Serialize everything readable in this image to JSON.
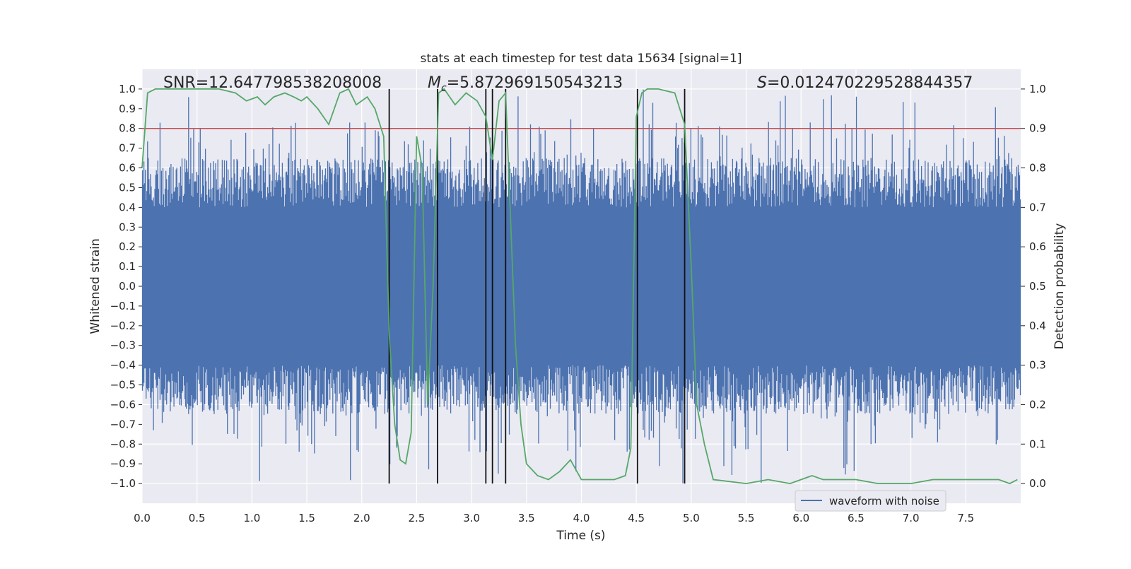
{
  "chart_data": {
    "type": "line",
    "title": "stats at each timestep for test data 15634 [signal=1]",
    "xlabel": "Time (s)",
    "ylabel": "Whitened strain",
    "ylabel_right": "Detection probability",
    "xlim": [
      0.0,
      8.0
    ],
    "ylim": [
      -1.1,
      1.1
    ],
    "ylim_right": [
      -0.05,
      1.05
    ],
    "x_ticks": [
      0.0,
      0.5,
      1.0,
      1.5,
      2.0,
      2.5,
      3.0,
      3.5,
      4.0,
      4.5,
      5.0,
      5.5,
      6.0,
      6.5,
      7.0,
      7.5
    ],
    "x_tick_labels": [
      "0.0",
      "0.5",
      "1.0",
      "1.5",
      "2.0",
      "2.5",
      "3.0",
      "3.5",
      "4.0",
      "4.5",
      "5.0",
      "5.5",
      "6.0",
      "6.5",
      "7.0",
      "7.5"
    ],
    "y_ticks": [
      -1.0,
      -0.9,
      -0.8,
      -0.7,
      -0.6,
      -0.5,
      -0.4,
      -0.3,
      -0.2,
      -0.1,
      0.0,
      0.1,
      0.2,
      0.3,
      0.4,
      0.5,
      0.6,
      0.7,
      0.8,
      0.9,
      1.0
    ],
    "y_tick_labels": [
      "−1.0",
      "−0.9",
      "−0.8",
      "−0.7",
      "−0.6",
      "−0.5",
      "−0.4",
      "−0.3",
      "−0.2",
      "−0.1",
      "0.0",
      "0.1",
      "0.2",
      "0.3",
      "0.4",
      "0.5",
      "0.6",
      "0.7",
      "0.8",
      "0.9",
      "1.0"
    ],
    "y_right_ticks": [
      0.0,
      0.1,
      0.2,
      0.3,
      0.4,
      0.5,
      0.6,
      0.7,
      0.8,
      0.9,
      1.0
    ],
    "y_right_tick_labels": [
      "0.0",
      "0.1",
      "0.2",
      "0.3",
      "0.4",
      "0.5",
      "0.6",
      "0.7",
      "0.8",
      "0.9",
      "1.0"
    ],
    "grid": true,
    "legend": {
      "entries": [
        "waveform with noise"
      ],
      "placement": "lower-right"
    },
    "annotations": {
      "snr": "SNR=12.647798538208008",
      "mc_symbol": "M",
      "mc_sub": "c",
      "mc_value": "=5.872969150543213",
      "s_symbol": "S",
      "s_value": "=0.012470229528844357"
    },
    "threshold_line": {
      "value": 0.9,
      "axis": "right",
      "color": "#c44e52"
    },
    "vertical_lines": [
      2.25,
      2.69,
      3.13,
      3.19,
      3.31,
      4.51,
      4.94
    ],
    "waveform": {
      "name": "waveform with noise",
      "color": "#4c72b0",
      "description": "whitened noisy strain, dense band approx ±0.4 with spikes to ±1.0",
      "band_half_width": 0.4,
      "spike_range": [
        -1.0,
        1.0
      ]
    },
    "detection_probability": {
      "color": "#55a868",
      "x": [
        0.0,
        0.05,
        0.12,
        0.2,
        0.3,
        0.5,
        0.7,
        0.85,
        0.95,
        1.05,
        1.12,
        1.2,
        1.3,
        1.38,
        1.45,
        1.5,
        1.6,
        1.7,
        1.8,
        1.88,
        1.95,
        2.05,
        2.12,
        2.2,
        2.25,
        2.3,
        2.35,
        2.4,
        2.45,
        2.5,
        2.55,
        2.6,
        2.65,
        2.7,
        2.75,
        2.85,
        2.95,
        3.05,
        3.13,
        3.19,
        3.25,
        3.31,
        3.4,
        3.45,
        3.5,
        3.6,
        3.7,
        3.8,
        3.9,
        4.0,
        4.1,
        4.2,
        4.3,
        4.4,
        4.45,
        4.5,
        4.55,
        4.6,
        4.7,
        4.85,
        4.94,
        5.0,
        5.05,
        5.12,
        5.2,
        5.5,
        5.7,
        5.9,
        6.0,
        6.1,
        6.2,
        6.3,
        6.4,
        6.5,
        6.7,
        7.0,
        7.2,
        7.4,
        7.6,
        7.8,
        7.9,
        7.97
      ],
      "y": [
        0.8,
        0.99,
        1.0,
        1.0,
        1.0,
        1.0,
        1.0,
        0.99,
        0.97,
        0.98,
        0.96,
        0.98,
        0.99,
        0.98,
        0.97,
        0.98,
        0.95,
        0.91,
        0.99,
        1.0,
        0.96,
        0.98,
        0.95,
        0.88,
        0.38,
        0.15,
        0.06,
        0.05,
        0.13,
        0.88,
        0.8,
        0.2,
        0.5,
        0.99,
        1.0,
        0.96,
        0.99,
        0.97,
        0.93,
        0.82,
        0.97,
        0.99,
        0.35,
        0.15,
        0.05,
        0.02,
        0.01,
        0.03,
        0.06,
        0.01,
        0.01,
        0.01,
        0.01,
        0.02,
        0.09,
        0.93,
        0.99,
        1.0,
        1.0,
        0.99,
        0.91,
        0.55,
        0.2,
        0.1,
        0.01,
        0.0,
        0.01,
        0.0,
        0.01,
        0.02,
        0.01,
        0.01,
        0.01,
        0.01,
        0.0,
        0.0,
        0.01,
        0.01,
        0.01,
        0.01,
        0.0,
        0.01
      ]
    }
  }
}
